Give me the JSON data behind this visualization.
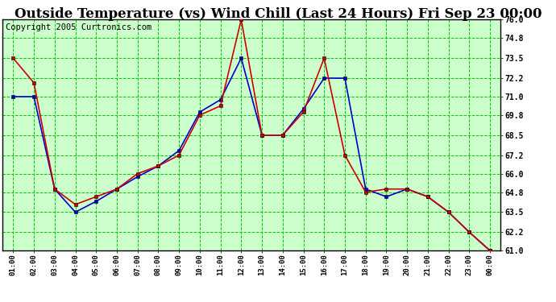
{
  "title": "Outside Temperature (vs) Wind Chill (Last 24 Hours) Fri Sep 23 00:00",
  "copyright": "Copyright 2005 Curtronics.com",
  "x_labels": [
    "01:00",
    "02:00",
    "03:00",
    "04:00",
    "05:00",
    "06:00",
    "07:00",
    "08:00",
    "09:00",
    "10:00",
    "11:00",
    "12:00",
    "13:00",
    "14:00",
    "15:00",
    "16:00",
    "17:00",
    "18:00",
    "19:00",
    "20:00",
    "21:00",
    "22:00",
    "23:00",
    "00:00"
  ],
  "outside_temp": [
    71.0,
    71.0,
    65.0,
    63.5,
    64.2,
    65.0,
    65.8,
    66.5,
    67.5,
    70.0,
    70.8,
    73.5,
    68.5,
    68.5,
    70.2,
    72.2,
    72.2,
    65.0,
    64.5,
    65.0,
    64.5,
    63.5,
    62.2,
    61.0
  ],
  "wind_chill": [
    73.5,
    71.9,
    65.0,
    64.0,
    64.5,
    65.0,
    66.0,
    66.5,
    67.2,
    69.8,
    70.4,
    76.0,
    68.5,
    68.5,
    70.0,
    73.5,
    67.2,
    64.8,
    65.0,
    65.0,
    64.5,
    63.5,
    62.2,
    61.0
  ],
  "temp_color": "#0000cc",
  "wind_color": "#cc0000",
  "bg_color": "#ffffff",
  "plot_bg": "#ccffcc",
  "grid_color": "#00cc00",
  "border_color": "#000000",
  "ylim_min": 61.0,
  "ylim_max": 76.0,
  "yticks": [
    61.0,
    62.2,
    63.5,
    64.8,
    66.0,
    67.2,
    68.5,
    69.8,
    71.0,
    72.2,
    73.5,
    74.8,
    76.0
  ],
  "title_fontsize": 12,
  "copyright_fontsize": 7.5
}
